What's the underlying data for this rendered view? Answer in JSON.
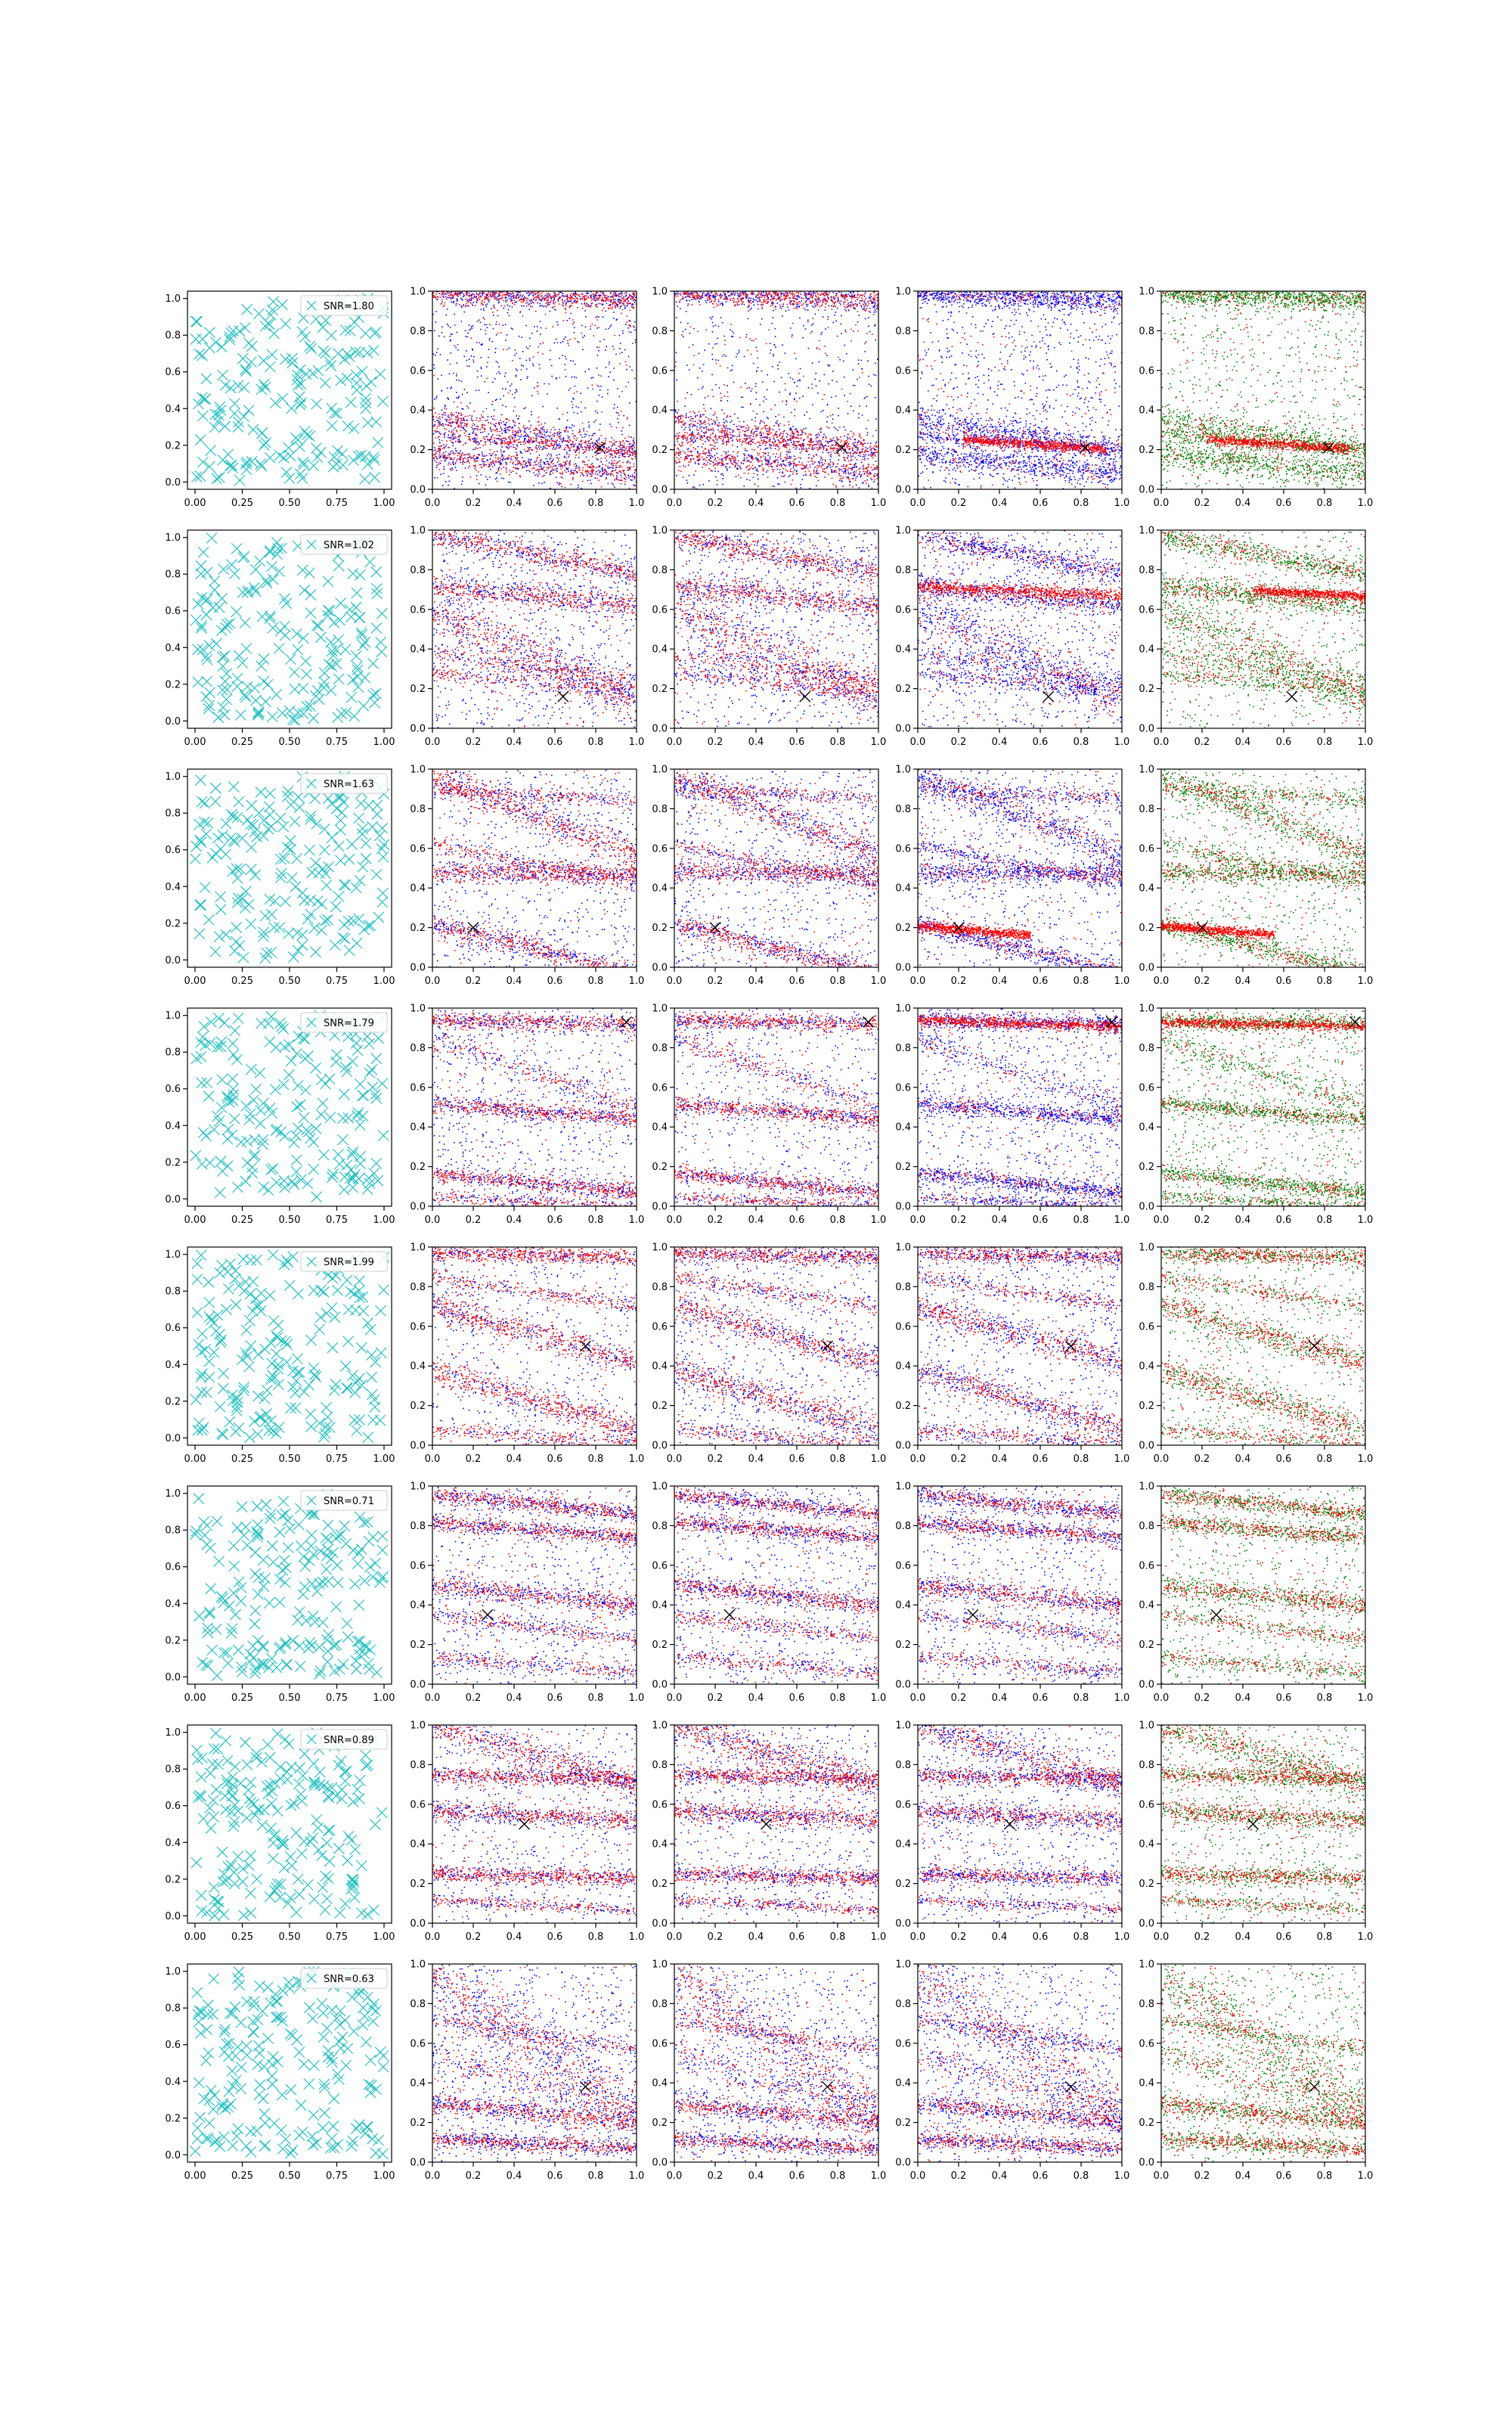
{
  "figure": {
    "rows": 8,
    "cols": 5,
    "background": "#ffffff"
  },
  "colors": {
    "cyan": "#17bfbf",
    "red": "#ff0000",
    "blue": "#0000ff",
    "green": "#008000",
    "black": "#000000"
  },
  "axes": {
    "col0": {
      "xlim": [
        -0.04,
        1.04
      ],
      "ylim": [
        -0.04,
        1.04
      ],
      "xticks": [
        "0.00",
        "0.25",
        "0.50",
        "0.75",
        "1.00"
      ],
      "xtick_values": [
        0,
        0.25,
        0.5,
        0.75,
        1.0
      ],
      "yticks": [
        "0.0",
        "0.2",
        "0.4",
        "0.6",
        "0.8",
        "1.0"
      ],
      "ytick_values": [
        0,
        0.2,
        0.4,
        0.6,
        0.8,
        1.0
      ]
    },
    "cols1to4": {
      "xlim": [
        0,
        1
      ],
      "ylim": [
        0,
        1
      ],
      "xticks": [
        "0.0",
        "0.2",
        "0.4",
        "0.6",
        "0.8",
        "1.0"
      ],
      "xtick_values": [
        0,
        0.2,
        0.4,
        0.6,
        0.8,
        1.0
      ],
      "yticks": [
        "0.0",
        "0.2",
        "0.4",
        "0.6",
        "0.8",
        "1.0"
      ],
      "ytick_values": [
        0,
        0.2,
        0.4,
        0.6,
        0.8,
        1.0
      ]
    }
  },
  "chart_data": {
    "type": "scatter",
    "rows": [
      {
        "legend": "SNR=1.80",
        "marker": {
          "x": 0.82,
          "y": 0.21
        },
        "bands": [
          {
            "y0": 1.0,
            "slope": -0.03,
            "width": 0.02,
            "kind": "dense"
          },
          {
            "y0": 0.35,
            "slope": -0.15,
            "width": 0.035,
            "kind": "dense"
          },
          {
            "y0": 0.18,
            "slope": -0.1,
            "width": 0.03,
            "kind": "dense"
          },
          {
            "y0": 0.97,
            "slope": -0.04,
            "width": 0.02,
            "kind": "light"
          },
          {
            "y0": 0.27,
            "slope": -0.07,
            "width": 0.015,
            "kind": "light"
          }
        ],
        "panels": [
          {
            "bg": "blue",
            "bg_density": 0.55,
            "band_mix": 0.55,
            "focus": null
          },
          {
            "bg": "blue",
            "bg_density": 0.45,
            "band_mix": 0.6,
            "focus": null
          },
          {
            "bg": "blue",
            "bg_density": 0.6,
            "band_mix": 0.15,
            "focus": {
              "y0": 0.27,
              "slope": -0.07,
              "x_from": 0.22,
              "x_to": 0.92,
              "width": 0.012
            }
          },
          {
            "bg": "green",
            "bg_density": 0.55,
            "band_mix": 0.15,
            "focus": {
              "y0": 0.27,
              "slope": -0.07,
              "x_from": 0.22,
              "x_to": 0.92,
              "width": 0.012
            }
          }
        ]
      },
      {
        "legend": "SNR=1.02",
        "marker": {
          "x": 0.64,
          "y": 0.16
        },
        "bands": [
          {
            "y0": 0.98,
            "slope": -0.2,
            "width": 0.03,
            "kind": "dense"
          },
          {
            "y0": 0.6,
            "slope": -0.45,
            "width": 0.06,
            "kind": "dense"
          },
          {
            "y0": 0.72,
            "slope": -0.1,
            "width": 0.03,
            "kind": "dense"
          },
          {
            "y0": 0.38,
            "slope": -0.15,
            "width": 0.025,
            "kind": "light"
          },
          {
            "y0": 0.28,
            "slope": -0.1,
            "width": 0.02,
            "kind": "light"
          }
        ],
        "panels": [
          {
            "bg": "blue",
            "bg_density": 0.5,
            "band_mix": 0.6,
            "focus": null
          },
          {
            "bg": "blue",
            "bg_density": 0.5,
            "band_mix": 0.6,
            "focus": null
          },
          {
            "bg": "blue",
            "bg_density": 0.5,
            "band_mix": 0.3,
            "focus": {
              "y0": 0.72,
              "slope": -0.05,
              "x_from": 0.0,
              "x_to": 1.0,
              "width": 0.015
            }
          },
          {
            "bg": "green",
            "bg_density": 0.45,
            "band_mix": 0.3,
            "focus": {
              "y0": 0.72,
              "slope": -0.05,
              "x_from": 0.45,
              "x_to": 1.0,
              "width": 0.012
            }
          }
        ]
      },
      {
        "legend": "SNR=1.63",
        "marker": {
          "x": 0.2,
          "y": 0.2
        },
        "bands": [
          {
            "y0": 0.97,
            "slope": -0.4,
            "width": 0.04,
            "kind": "dense"
          },
          {
            "y0": 0.48,
            "slope": 0.0,
            "width": 0.025,
            "kind": "dense"
          },
          {
            "y0": 0.22,
            "slope": -0.25,
            "width": 0.025,
            "kind": "dense"
          },
          {
            "y0": 0.9,
            "slope": -0.05,
            "width": 0.02,
            "kind": "light"
          },
          {
            "y0": 0.62,
            "slope": -0.2,
            "width": 0.02,
            "kind": "light"
          }
        ],
        "panels": [
          {
            "bg": "blue",
            "bg_density": 0.5,
            "band_mix": 0.6,
            "focus": null
          },
          {
            "bg": "blue",
            "bg_density": 0.5,
            "band_mix": 0.55,
            "focus": null
          },
          {
            "bg": "blue",
            "bg_density": 0.5,
            "band_mix": 0.3,
            "focus": {
              "y0": 0.21,
              "slope": -0.08,
              "x_from": 0.0,
              "x_to": 0.55,
              "width": 0.012
            }
          },
          {
            "bg": "green",
            "bg_density": 0.45,
            "band_mix": 0.3,
            "focus": {
              "y0": 0.21,
              "slope": -0.08,
              "x_from": 0.0,
              "x_to": 0.55,
              "width": 0.012
            }
          }
        ]
      },
      {
        "legend": "SNR=1.79",
        "marker": {
          "x": 0.95,
          "y": 0.93
        },
        "bands": [
          {
            "y0": 0.94,
            "slope": -0.02,
            "width": 0.02,
            "kind": "dense"
          },
          {
            "y0": 0.85,
            "slope": -0.35,
            "width": 0.03,
            "kind": "light"
          },
          {
            "y0": 0.52,
            "slope": -0.08,
            "width": 0.02,
            "kind": "dense"
          },
          {
            "y0": 0.17,
            "slope": -0.1,
            "width": 0.02,
            "kind": "dense"
          },
          {
            "y0": 0.05,
            "slope": -0.05,
            "width": 0.015,
            "kind": "light"
          }
        ],
        "panels": [
          {
            "bg": "blue",
            "bg_density": 0.5,
            "band_mix": 0.6,
            "focus": null
          },
          {
            "bg": "blue",
            "bg_density": 0.4,
            "band_mix": 0.6,
            "focus": null
          },
          {
            "bg": "blue",
            "bg_density": 0.55,
            "band_mix": 0.25,
            "focus": {
              "y0": 0.94,
              "slope": -0.03,
              "x_from": 0.0,
              "x_to": 1.0,
              "width": 0.012
            }
          },
          {
            "bg": "green",
            "bg_density": 0.6,
            "band_mix": 0.25,
            "focus": {
              "y0": 0.93,
              "slope": -0.02,
              "x_from": 0.0,
              "x_to": 1.0,
              "width": 0.012
            }
          }
        ]
      },
      {
        "legend": "SNR=1.99",
        "marker": {
          "x": 0.75,
          "y": 0.5
        },
        "bands": [
          {
            "y0": 0.7,
            "slope": -0.28,
            "width": 0.035,
            "kind": "dense"
          },
          {
            "y0": 0.38,
            "slope": -0.3,
            "width": 0.035,
            "kind": "dense"
          },
          {
            "y0": 0.97,
            "slope": -0.02,
            "width": 0.02,
            "kind": "dense"
          },
          {
            "y0": 0.85,
            "slope": -0.15,
            "width": 0.02,
            "kind": "light"
          },
          {
            "y0": 0.08,
            "slope": -0.07,
            "width": 0.02,
            "kind": "light"
          }
        ],
        "panels": [
          {
            "bg": "blue",
            "bg_density": 0.35,
            "band_mix": 0.7,
            "focus": null
          },
          {
            "bg": "blue",
            "bg_density": 0.45,
            "band_mix": 0.6,
            "focus": null
          },
          {
            "bg": "blue",
            "bg_density": 0.45,
            "band_mix": 0.55,
            "focus": null
          },
          {
            "bg": "green",
            "bg_density": 0.45,
            "band_mix": 0.55,
            "focus": null
          }
        ]
      },
      {
        "legend": "SNR=0.71",
        "marker": {
          "x": 0.27,
          "y": 0.35
        },
        "bands": [
          {
            "y0": 0.96,
            "slope": -0.1,
            "width": 0.02,
            "kind": "dense"
          },
          {
            "y0": 0.82,
            "slope": -0.08,
            "width": 0.02,
            "kind": "dense"
          },
          {
            "y0": 0.5,
            "slope": -0.1,
            "width": 0.025,
            "kind": "dense"
          },
          {
            "y0": 0.35,
            "slope": -0.12,
            "width": 0.02,
            "kind": "light"
          },
          {
            "y0": 0.14,
            "slope": -0.08,
            "width": 0.02,
            "kind": "light"
          }
        ],
        "panels": [
          {
            "bg": "blue",
            "bg_density": 0.5,
            "band_mix": 0.55,
            "focus": null
          },
          {
            "bg": "blue",
            "bg_density": 0.5,
            "band_mix": 0.55,
            "focus": null
          },
          {
            "bg": "blue",
            "bg_density": 0.5,
            "band_mix": 0.5,
            "focus": null
          },
          {
            "bg": "green",
            "bg_density": 0.5,
            "band_mix": 0.5,
            "focus": null
          }
        ]
      },
      {
        "legend": "SNR=0.89",
        "marker": {
          "x": 0.45,
          "y": 0.5
        },
        "bands": [
          {
            "y0": 1.0,
            "slope": -0.3,
            "width": 0.04,
            "kind": "dense"
          },
          {
            "y0": 0.75,
            "slope": -0.02,
            "width": 0.02,
            "kind": "dense"
          },
          {
            "y0": 0.57,
            "slope": -0.05,
            "width": 0.025,
            "kind": "dense"
          },
          {
            "y0": 0.25,
            "slope": -0.02,
            "width": 0.02,
            "kind": "dense"
          },
          {
            "y0": 0.12,
            "slope": -0.05,
            "width": 0.015,
            "kind": "light"
          }
        ],
        "panels": [
          {
            "bg": "blue",
            "bg_density": 0.4,
            "band_mix": 0.6,
            "focus": null
          },
          {
            "bg": "blue",
            "bg_density": 0.5,
            "band_mix": 0.6,
            "focus": null
          },
          {
            "bg": "blue",
            "bg_density": 0.5,
            "band_mix": 0.5,
            "focus": null
          },
          {
            "bg": "green",
            "bg_density": 0.55,
            "band_mix": 0.5,
            "focus": null
          }
        ]
      },
      {
        "legend": "SNR=0.63",
        "marker": {
          "x": 0.75,
          "y": 0.38
        },
        "bands": [
          {
            "y0": 0.95,
            "slope": -0.7,
            "width": 0.08,
            "kind": "dense"
          },
          {
            "y0": 0.55,
            "slope": -0.3,
            "width": 0.04,
            "kind": "light"
          },
          {
            "y0": 0.3,
            "slope": -0.1,
            "width": 0.025,
            "kind": "dense"
          },
          {
            "y0": 0.12,
            "slope": -0.05,
            "width": 0.02,
            "kind": "dense"
          },
          {
            "y0": 0.72,
            "slope": -0.15,
            "width": 0.02,
            "kind": "light"
          }
        ],
        "panels": [
          {
            "bg": "blue",
            "bg_density": 0.6,
            "band_mix": 0.55,
            "focus": null
          },
          {
            "bg": "blue",
            "bg_density": 0.5,
            "band_mix": 0.55,
            "focus": null
          },
          {
            "bg": "blue",
            "bg_density": 0.5,
            "band_mix": 0.5,
            "focus": null
          },
          {
            "bg": "green",
            "bg_density": 0.55,
            "band_mix": 0.5,
            "focus": null
          }
        ]
      }
    ]
  }
}
